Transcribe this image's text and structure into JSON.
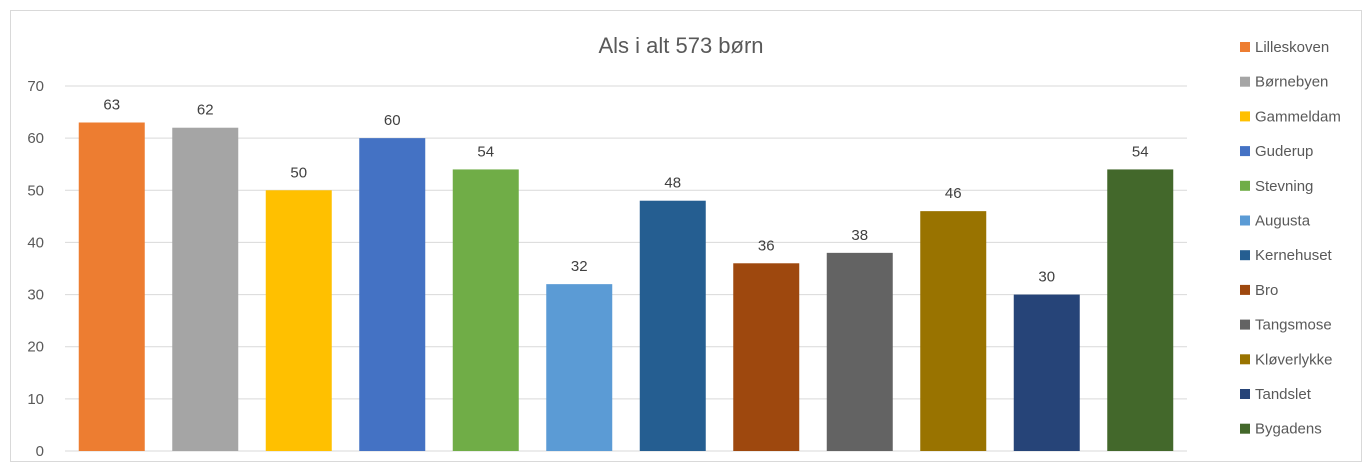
{
  "chart_data": {
    "type": "bar",
    "title": "Als i alt 573 børn",
    "xlabel": "",
    "ylabel": "",
    "ylim": [
      0,
      70
    ],
    "yticks": [
      0,
      10,
      20,
      30,
      40,
      50,
      60,
      70
    ],
    "grid": true,
    "legend_position": "right",
    "series": [
      {
        "name": "Lilleskoven",
        "value": 63,
        "color": "#ED7D31"
      },
      {
        "name": "Børnebyen",
        "value": 62,
        "color": "#A5A5A5"
      },
      {
        "name": "Gammeldam",
        "value": 50,
        "color": "#FFC000"
      },
      {
        "name": "Guderup",
        "value": 60,
        "color": "#4472C4"
      },
      {
        "name": "Stevning",
        "value": 54,
        "color": "#70AD47"
      },
      {
        "name": "Augusta",
        "value": 32,
        "color": "#5B9BD5"
      },
      {
        "name": "Kernehuset",
        "value": 48,
        "color": "#255E91"
      },
      {
        "name": "Bro",
        "value": 36,
        "color": "#9E480E"
      },
      {
        "name": "Tangsmose",
        "value": 38,
        "color": "#636363"
      },
      {
        "name": "Kløverlykke",
        "value": 46,
        "color": "#997300"
      },
      {
        "name": "Tandslet",
        "value": 30,
        "color": "#264478"
      },
      {
        "name": "Bygadens",
        "value": 54,
        "color": "#43682B"
      }
    ]
  }
}
